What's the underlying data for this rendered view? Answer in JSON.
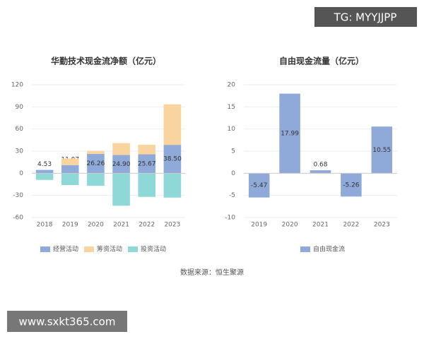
{
  "watermark_top": "TG: MYYJJPP",
  "chart_data": [
    {
      "type": "stacked_bar",
      "title": "华勤技术现金流净额（亿元）",
      "categories": [
        "2018",
        "2019",
        "2020",
        "2021",
        "2022",
        "2023"
      ],
      "series": [
        {
          "name": "经营活动",
          "color": "#8fa9d8",
          "values": [
            4.53,
            11.07,
            26.26,
            24.9,
            25.67,
            38.5
          ],
          "value_labels": [
            "4.53",
            "11.07",
            "26.26",
            "24.90",
            "25.67",
            "38.50"
          ]
        },
        {
          "name": "筹资活动",
          "color": "#f9d49e",
          "values": [
            0,
            9,
            4,
            16,
            13,
            55
          ]
        },
        {
          "name": "投资活动",
          "color": "#8fd8d8",
          "values": [
            -9,
            -16,
            -17,
            -44,
            -32,
            -33
          ]
        }
      ],
      "ylim": [
        -60,
        120
      ],
      "yticks": [
        -60,
        -30,
        0,
        30,
        60,
        90,
        120
      ],
      "grid": true
    },
    {
      "type": "bar",
      "title": "自由现金流量（亿元）",
      "categories": [
        "2019",
        "2020",
        "2021",
        "2022",
        "2023"
      ],
      "series": [
        {
          "name": "自由现金流",
          "color": "#8fa9d8",
          "values": [
            -5.47,
            17.99,
            0.68,
            -5.26,
            10.55
          ]
        }
      ],
      "ylim": [
        -10,
        20
      ],
      "yticks": [
        -10,
        -5,
        0,
        5,
        10,
        15,
        20
      ],
      "grid": true
    }
  ],
  "source": "数据来源：恒生聚源",
  "watermark_bottom": "www.sxkt365.com"
}
